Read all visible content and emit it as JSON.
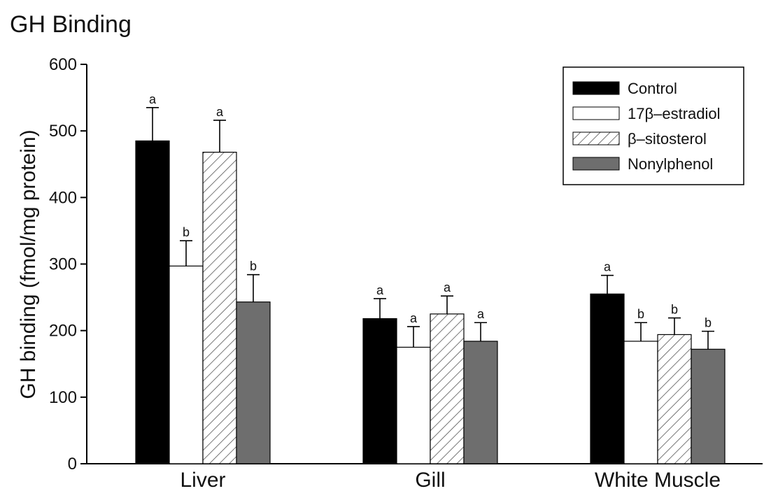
{
  "chart_data": {
    "type": "bar",
    "title": "GH Binding",
    "ylabel": "GH binding (fmol/mg protein)",
    "xlabel": "",
    "ylim": [
      0,
      600
    ],
    "yticks": [
      0,
      100,
      200,
      300,
      400,
      500,
      600
    ],
    "categories": [
      "Liver",
      "Gill",
      "White Muscle"
    ],
    "series": [
      {
        "name": "Control",
        "color": "#000000",
        "pattern": "solid",
        "values": [
          485,
          218,
          255
        ],
        "errors": [
          50,
          30,
          28
        ],
        "labels": [
          "a",
          "a",
          "a"
        ]
      },
      {
        "name": "17β–estradiol",
        "color": "#ffffff",
        "pattern": "solid",
        "values": [
          297,
          175,
          184
        ],
        "errors": [
          38,
          31,
          28
        ],
        "labels": [
          "b",
          "a",
          "b"
        ]
      },
      {
        "name": "β–sitosterol",
        "color": "#ffffff",
        "pattern": "hatch",
        "values": [
          468,
          225,
          194
        ],
        "errors": [
          48,
          27,
          25
        ],
        "labels": [
          "a",
          "a",
          "b"
        ]
      },
      {
        "name": "Nonylphenol",
        "color": "#6e6e6e",
        "pattern": "solid",
        "values": [
          243,
          184,
          172
        ],
        "errors": [
          41,
          28,
          27
        ],
        "labels": [
          "b",
          "a",
          "b"
        ]
      }
    ],
    "legend_position": "top-right",
    "grid": false
  }
}
